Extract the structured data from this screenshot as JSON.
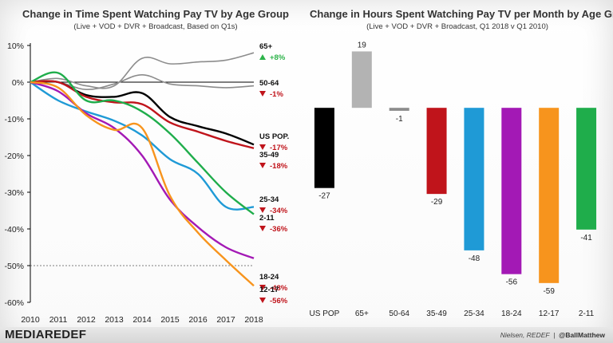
{
  "left_chart": {
    "title": "Change in Time Spent Watching Pay TV by Age Group",
    "subtitle": "(Live + VOD + DVR + Broadcast, Based on Q1s)"
  },
  "right_chart": {
    "title": "Change in Hours Spent Watching Pay TV per Month by Age Group",
    "subtitle": "(Live + VOD + DVR + Broadcast, Q1 2018 v Q1 2010)"
  },
  "footer": {
    "logo_left": "MEDIA",
    "logo_right": "REDEF",
    "source": "Nielsen, REDEF",
    "separator": "|",
    "handle": "@BallMatthew"
  },
  "colors": {
    "up": "#2db34a",
    "down": "#c0141b"
  },
  "chart_data": [
    {
      "type": "line",
      "x": [
        2010,
        2011,
        2012,
        2013,
        2014,
        2015,
        2016,
        2017,
        2018
      ],
      "ylim": [
        -60,
        10
      ],
      "yticks": [
        10,
        0,
        -10,
        -20,
        -30,
        -40,
        -50,
        -60
      ],
      "ytick_labels": [
        "10%",
        "0%",
        "-10%",
        "-20%",
        "-30%",
        "-40%",
        "-50%",
        "-60%"
      ],
      "reference_line": -50,
      "series": [
        {
          "name": "65+",
          "label": "65+",
          "change": "+8%",
          "direction": "up",
          "color": "#8c8c8c",
          "values": [
            0,
            1,
            -1,
            -1,
            6.5,
            5,
            5.5,
            6,
            8
          ]
        },
        {
          "name": "50-64",
          "label": "50-64",
          "change": "-1%",
          "direction": "down",
          "color": "#8c8c8c",
          "values": [
            0,
            0,
            -2,
            -0.5,
            2,
            -0.5,
            -1,
            -1.5,
            -1
          ]
        },
        {
          "name": "US POP.",
          "label": "US POP.",
          "change": "-17%",
          "direction": "down",
          "color": "#000000",
          "values": [
            0,
            0,
            -3.5,
            -4,
            -3,
            -9.5,
            -12,
            -14,
            -17
          ]
        },
        {
          "name": "35-49",
          "label": "35-49",
          "change": "-18%",
          "direction": "down",
          "color": "#c0141b",
          "values": [
            0,
            0,
            -4,
            -5.5,
            -6,
            -11,
            -13.5,
            -16,
            -18
          ]
        },
        {
          "name": "25-34",
          "label": "25-34",
          "change": "-34%",
          "direction": "down",
          "color": "#1f9ad6",
          "values": [
            0,
            -5,
            -8,
            -10.5,
            -14.5,
            -21,
            -25,
            -34,
            -34
          ]
        },
        {
          "name": "2-11",
          "label": "2-11",
          "change": "-36%",
          "direction": "down",
          "color": "#1fad4b",
          "values": [
            0,
            2.5,
            -5,
            -5,
            -8,
            -14,
            -22,
            -30,
            -36
          ]
        },
        {
          "name": "18-24",
          "label": "18-24",
          "change": "-48%",
          "direction": "down",
          "color": "#a319b5",
          "values": [
            0,
            -2.5,
            -8.5,
            -12.5,
            -20,
            -32,
            -39.5,
            -45,
            -48
          ]
        },
        {
          "name": "12-17",
          "label": "12-17",
          "change": "-56%",
          "direction": "down",
          "color": "#f7941d",
          "values": [
            0,
            -1.5,
            -9,
            -13,
            -12.5,
            -31,
            -41,
            -48.5,
            -55.5
          ]
        }
      ]
    },
    {
      "type": "bar",
      "categories": [
        "US POP",
        "65+",
        "50-64",
        "35-49",
        "25-34",
        "18-24",
        "12-17",
        "2-11"
      ],
      "values": [
        -27,
        19,
        -1,
        -29,
        -48,
        -56,
        -59,
        -41
      ],
      "value_labels": [
        "-27",
        "19",
        "-1",
        "-29",
        "-48",
        "-56",
        "-59",
        "-41"
      ],
      "colors": [
        "#000000",
        "#b3b3b3",
        "#8c8c8c",
        "#c0141b",
        "#1f9ad6",
        "#a319b5",
        "#f7941d",
        "#1fad4b"
      ],
      "ylim": [
        -62,
        21
      ]
    }
  ]
}
